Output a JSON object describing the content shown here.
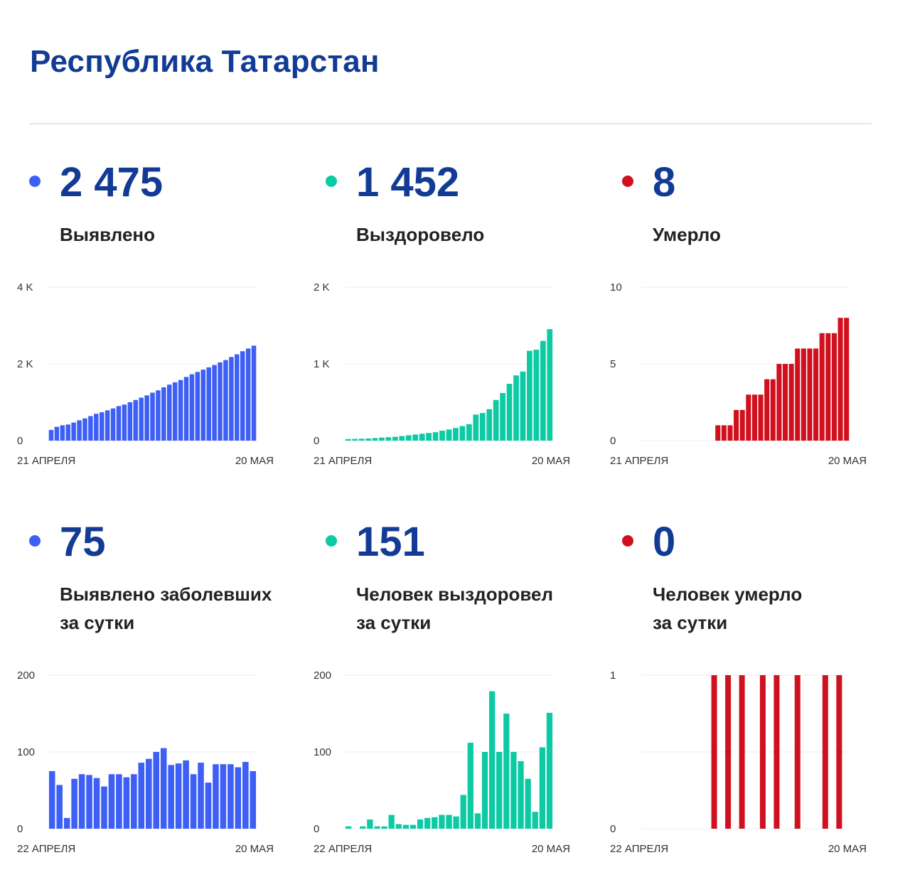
{
  "title": "Республика Татарстан",
  "colors": {
    "blue": "#3d5ff5",
    "green": "#0ccaa4",
    "red": "#d0101e",
    "title": "#123b96"
  },
  "cards": [
    {
      "value": "2 475",
      "label_line1": "Выявлено",
      "label_line2": "",
      "color": "#3d5ff5",
      "dot_color": "#3d5ff5",
      "chart_data": {
        "type": "bar",
        "title": "",
        "xlabel": "",
        "ylabel": "",
        "ylim": [
          0,
          4000
        ],
        "yticks": [
          "4 K",
          "2 K",
          "0"
        ],
        "ytick_values": [
          4000,
          2000,
          0
        ],
        "x_start": "21 АПРЕЛЯ",
        "x_end": "20 МАЯ",
        "grid": true,
        "values": [
          280,
          360,
          400,
          420,
          470,
          530,
          580,
          640,
          700,
          740,
          790,
          840,
          900,
          940,
          1000,
          1060,
          1120,
          1180,
          1250,
          1310,
          1390,
          1460,
          1520,
          1580,
          1660,
          1730,
          1790,
          1850,
          1910,
          1970,
          2040,
          2100,
          2180,
          2250,
          2330,
          2400,
          2475
        ]
      }
    },
    {
      "value": "1 452",
      "label_line1": "Выздоровело",
      "label_line2": "",
      "color": "#0ccaa4",
      "dot_color": "#0ccaa4",
      "chart_data": {
        "type": "bar",
        "title": "",
        "xlabel": "",
        "ylabel": "",
        "ylim": [
          0,
          2000
        ],
        "yticks": [
          "2 K",
          "1 K",
          "0"
        ],
        "ytick_values": [
          2000,
          1000,
          0
        ],
        "x_start": "21 АПРЕЛЯ",
        "x_end": "20 МАЯ",
        "grid": true,
        "values": [
          20,
          22,
          25,
          28,
          33,
          40,
          45,
          50,
          60,
          70,
          80,
          90,
          100,
          110,
          130,
          145,
          165,
          190,
          215,
          340,
          360,
          410,
          530,
          620,
          740,
          850,
          900,
          1170,
          1185,
          1300,
          1452
        ]
      }
    },
    {
      "value": "8",
      "label_line1": "Умерло",
      "label_line2": "",
      "color": "#d0101e",
      "dot_color": "#d0101e",
      "chart_data": {
        "type": "bar",
        "title": "",
        "xlabel": "",
        "ylabel": "",
        "ylim": [
          0,
          10
        ],
        "yticks": [
          "10",
          "5",
          "0"
        ],
        "ytick_values": [
          10,
          5,
          0
        ],
        "x_start": "21 АПРЕЛЯ",
        "x_end": "20 МАЯ",
        "grid": true,
        "values": [
          0,
          0,
          0,
          0,
          0,
          0,
          0,
          0,
          0,
          0,
          0,
          0,
          1,
          1,
          1,
          2,
          2,
          3,
          3,
          3,
          4,
          4,
          5,
          5,
          5,
          6,
          6,
          6,
          6,
          7,
          7,
          7,
          8,
          8
        ]
      }
    },
    {
      "value": "75",
      "label_line1": "Выявлено заболевших",
      "label_line2": "за сутки",
      "color": "#3d5ff5",
      "dot_color": "#3d5ff5",
      "chart_data": {
        "type": "bar",
        "title": "",
        "xlabel": "",
        "ylabel": "",
        "ylim": [
          0,
          200
        ],
        "yticks": [
          "200",
          "100",
          "0"
        ],
        "ytick_values": [
          200,
          100,
          0
        ],
        "x_start": "22 АПРЕЛЯ",
        "x_end": "20 МАЯ",
        "grid": true,
        "values": [
          75,
          57,
          14,
          65,
          71,
          70,
          66,
          55,
          71,
          71,
          67,
          71,
          86,
          91,
          100,
          105,
          83,
          85,
          89,
          71,
          86,
          60,
          84,
          84,
          84,
          80,
          87,
          75
        ]
      }
    },
    {
      "value": "151",
      "label_line1": "Человек выздоровел",
      "label_line2": "за сутки",
      "color": "#0ccaa4",
      "dot_color": "#0ccaa4",
      "chart_data": {
        "type": "bar",
        "title": "",
        "xlabel": "",
        "ylabel": "",
        "ylim": [
          0,
          200
        ],
        "yticks": [
          "200",
          "100",
          "0"
        ],
        "ytick_values": [
          200,
          100,
          0
        ],
        "x_start": "22 АПРЕЛЯ",
        "x_end": "20 МАЯ",
        "grid": true,
        "values": [
          3,
          0,
          3,
          12,
          3,
          3,
          18,
          6,
          5,
          5,
          12,
          14,
          15,
          18,
          18,
          16,
          44,
          112,
          20,
          100,
          179,
          100,
          150,
          100,
          88,
          65,
          22,
          106,
          151
        ]
      }
    },
    {
      "value": "0",
      "label_line1": "Человек умерло",
      "label_line2": "за сутки",
      "color": "#d0101e",
      "dot_color": "#d0101e",
      "chart_data": {
        "type": "bar",
        "title": "",
        "xlabel": "",
        "ylabel": "",
        "ylim": [
          0,
          1
        ],
        "yticks": [
          "1",
          "",
          "0"
        ],
        "ytick_values": [
          1,
          0.5,
          0
        ],
        "x_start": "22 АПРЕЛЯ",
        "x_end": "20 МАЯ",
        "grid": true,
        "values": [
          0,
          0,
          0,
          0,
          0,
          0,
          0,
          0,
          0,
          0,
          1,
          0,
          1,
          0,
          1,
          0,
          0,
          1,
          0,
          1,
          0,
          0,
          1,
          0,
          0,
          0,
          1,
          0,
          1,
          0
        ]
      }
    }
  ]
}
